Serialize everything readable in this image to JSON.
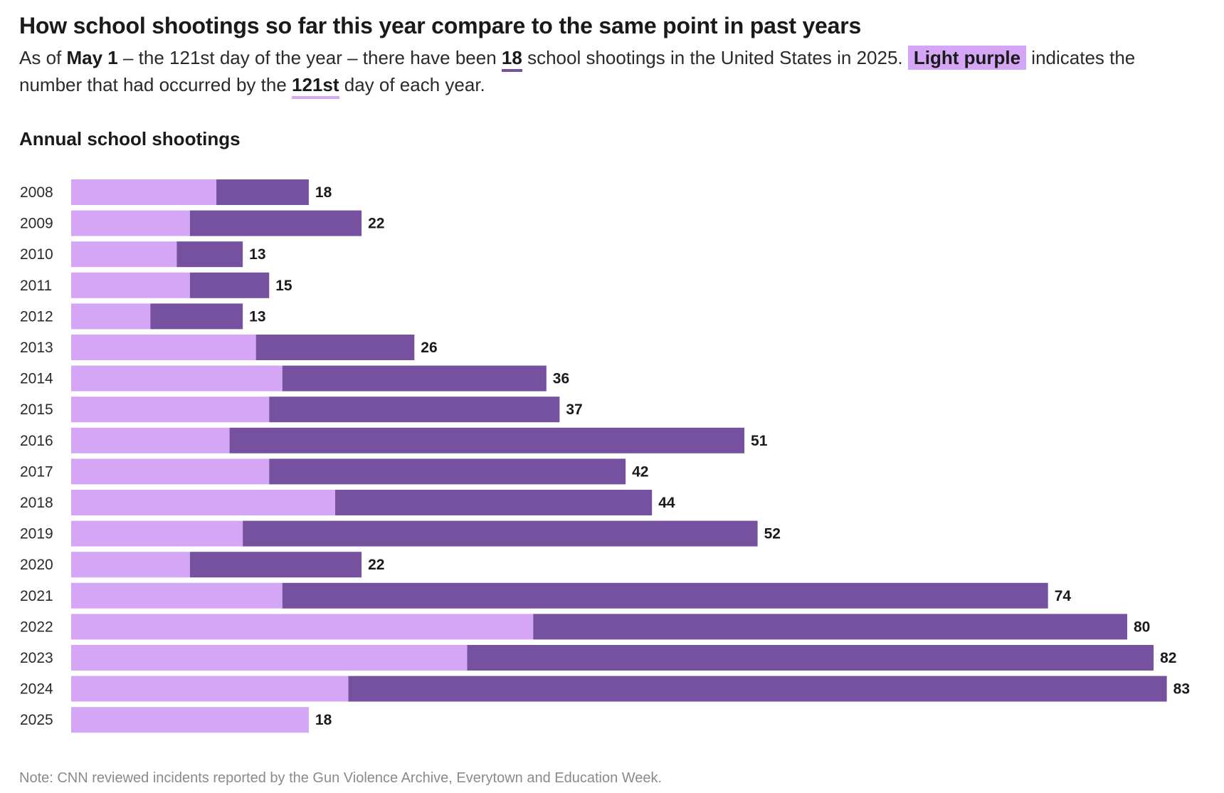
{
  "header": {
    "title": "How school shootings so far this year compare to the same point in past years",
    "subtitle_prefix": "As of ",
    "subtitle_date": "May 1",
    "subtitle_mid1": " – the 121st day of the year – there have been ",
    "subtitle_count": "18",
    "subtitle_mid2": " school shootings in the United States in 2025. ",
    "subtitle_highlight": "Light purple",
    "subtitle_mid3": " indicates the number that had occurred by the ",
    "subtitle_day": "121st",
    "subtitle_suffix": " day of each year."
  },
  "chart_label": "Annual school shootings",
  "note": "Note: CNN reviewed incidents reported by the Gun Violence Archive, Everytown and Education Week.",
  "colors": {
    "by_day_121": "#d4a6f5",
    "rest_of_year": "#75519f"
  },
  "chart_data": {
    "type": "bar",
    "orientation": "horizontal",
    "stacked": true,
    "title": "Annual school shootings",
    "categories": [
      "2008",
      "2009",
      "2010",
      "2011",
      "2012",
      "2013",
      "2014",
      "2015",
      "2016",
      "2017",
      "2018",
      "2019",
      "2020",
      "2021",
      "2022",
      "2023",
      "2024",
      "2025"
    ],
    "series": [
      {
        "values": [
          11,
          9,
          8,
          9,
          6,
          14,
          16,
          15,
          12,
          15,
          20,
          13,
          9,
          16,
          35,
          30,
          21,
          18
        ]
      },
      {
        "values": [
          7,
          13,
          5,
          6,
          7,
          12,
          20,
          22,
          39,
          27,
          24,
          39,
          13,
          58,
          45,
          52,
          62,
          0
        ]
      }
    ],
    "totals": [
      18,
      22,
      13,
      15,
      13,
      26,
      36,
      37,
      51,
      42,
      44,
      52,
      22,
      74,
      80,
      82,
      83,
      18
    ],
    "xlim": [
      0,
      83
    ],
    "grid": false,
    "legend": "none"
  }
}
